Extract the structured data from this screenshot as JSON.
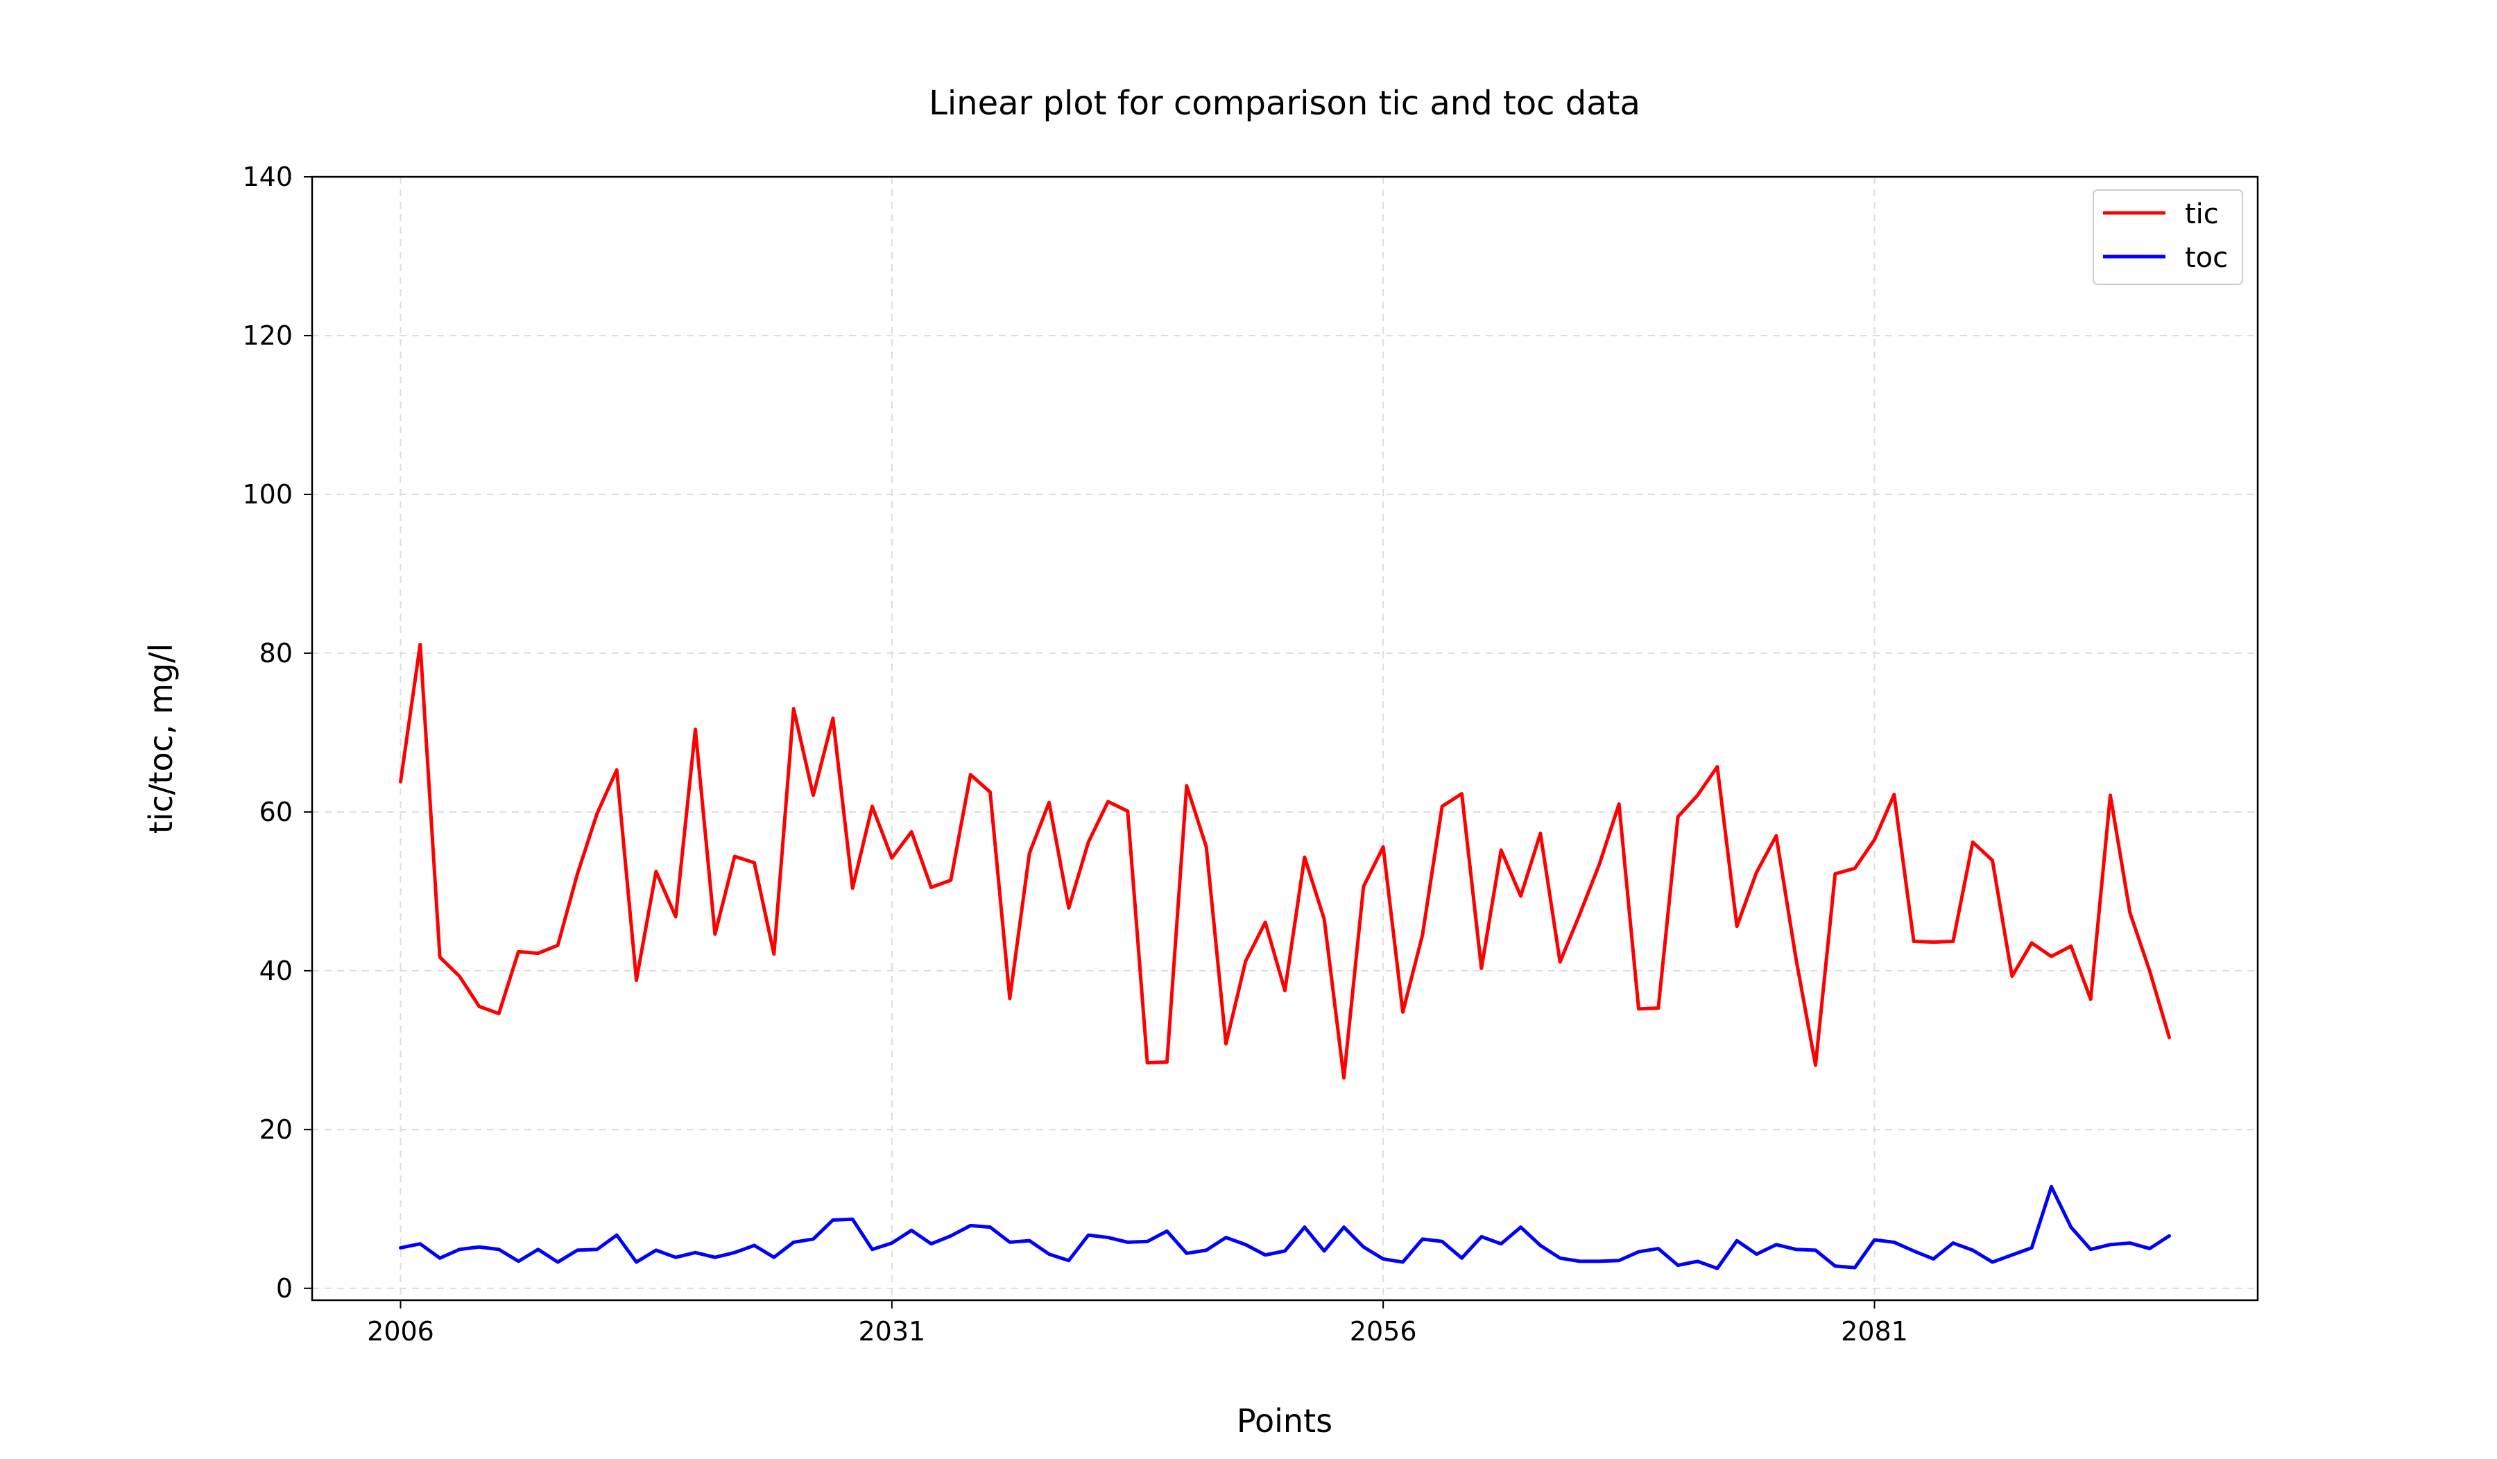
{
  "chart_data": {
    "type": "line",
    "title": "Linear plot for comparison tic and toc data",
    "xlabel": "Points",
    "ylabel": "tic/toc, mg/l",
    "xlim": [
      2001.5,
      2100.5
    ],
    "ylim": [
      -1.5,
      140
    ],
    "x_ticks": [
      2006,
      2031,
      2056,
      2081
    ],
    "y_ticks": [
      0,
      20,
      40,
      60,
      80,
      100,
      120,
      140
    ],
    "grid": true,
    "legend_position": "top-right",
    "x_start": 2006,
    "series": [
      {
        "name": "tic",
        "color": "#ff0000",
        "values": [
          63.8,
          81.1,
          41.7,
          39.3,
          35.5,
          34.6,
          42.4,
          42.2,
          43.2,
          52.2,
          59.8,
          65.3,
          38.8,
          52.5,
          46.8,
          70.4,
          44.6,
          54.4,
          53.6,
          42.1,
          73.0,
          62.1,
          71.8,
          50.4,
          60.7,
          54.2,
          57.5,
          50.5,
          51.4,
          64.7,
          62.5,
          36.5,
          54.8,
          61.2,
          47.9,
          56.2,
          61.3,
          60.1,
          28.4,
          28.5,
          63.3,
          55.6,
          30.8,
          41.2,
          46.1,
          37.5,
          54.3,
          46.5,
          26.5,
          50.6,
          55.6,
          34.8,
          44.5,
          60.7,
          62.3,
          40.3,
          55.2,
          49.4,
          57.3,
          41.1,
          47.1,
          53.4,
          61.0,
          35.2,
          35.3,
          59.4,
          62.1,
          65.7,
          45.6,
          52.4,
          57.0,
          41.6,
          28.1,
          52.2,
          52.9,
          56.5,
          62.2,
          43.7,
          43.6,
          43.7,
          56.2,
          53.9,
          39.3,
          43.5,
          41.8,
          43.1,
          36.4,
          62.1,
          47.3,
          40.0,
          31.6
        ]
      },
      {
        "name": "toc",
        "color": "#0000ff",
        "values": [
          5.1,
          5.6,
          3.8,
          4.9,
          5.2,
          4.9,
          3.4,
          4.9,
          3.3,
          4.8,
          4.9,
          6.7,
          3.3,
          4.8,
          3.9,
          4.5,
          3.9,
          4.5,
          5.4,
          3.9,
          5.8,
          6.2,
          8.6,
          8.7,
          4.9,
          5.7,
          7.3,
          5.6,
          6.6,
          7.9,
          7.7,
          5.8,
          6.0,
          4.3,
          3.5,
          6.7,
          6.4,
          5.8,
          5.9,
          7.2,
          4.4,
          4.8,
          6.4,
          5.5,
          4.2,
          4.7,
          7.7,
          4.7,
          7.7,
          5.2,
          3.7,
          3.3,
          6.2,
          5.9,
          3.8,
          6.5,
          5.6,
          7.7,
          5.4,
          3.8,
          3.4,
          3.4,
          3.5,
          4.6,
          5.0,
          2.9,
          3.4,
          2.5,
          6.0,
          4.3,
          5.5,
          4.9,
          4.8,
          2.8,
          2.6,
          6.1,
          5.8,
          4.7,
          3.7,
          5.7,
          4.8,
          3.3,
          4.2,
          5.1,
          12.8,
          7.7,
          4.9,
          5.5,
          5.7,
          5.0,
          6.6
        ]
      }
    ]
  }
}
